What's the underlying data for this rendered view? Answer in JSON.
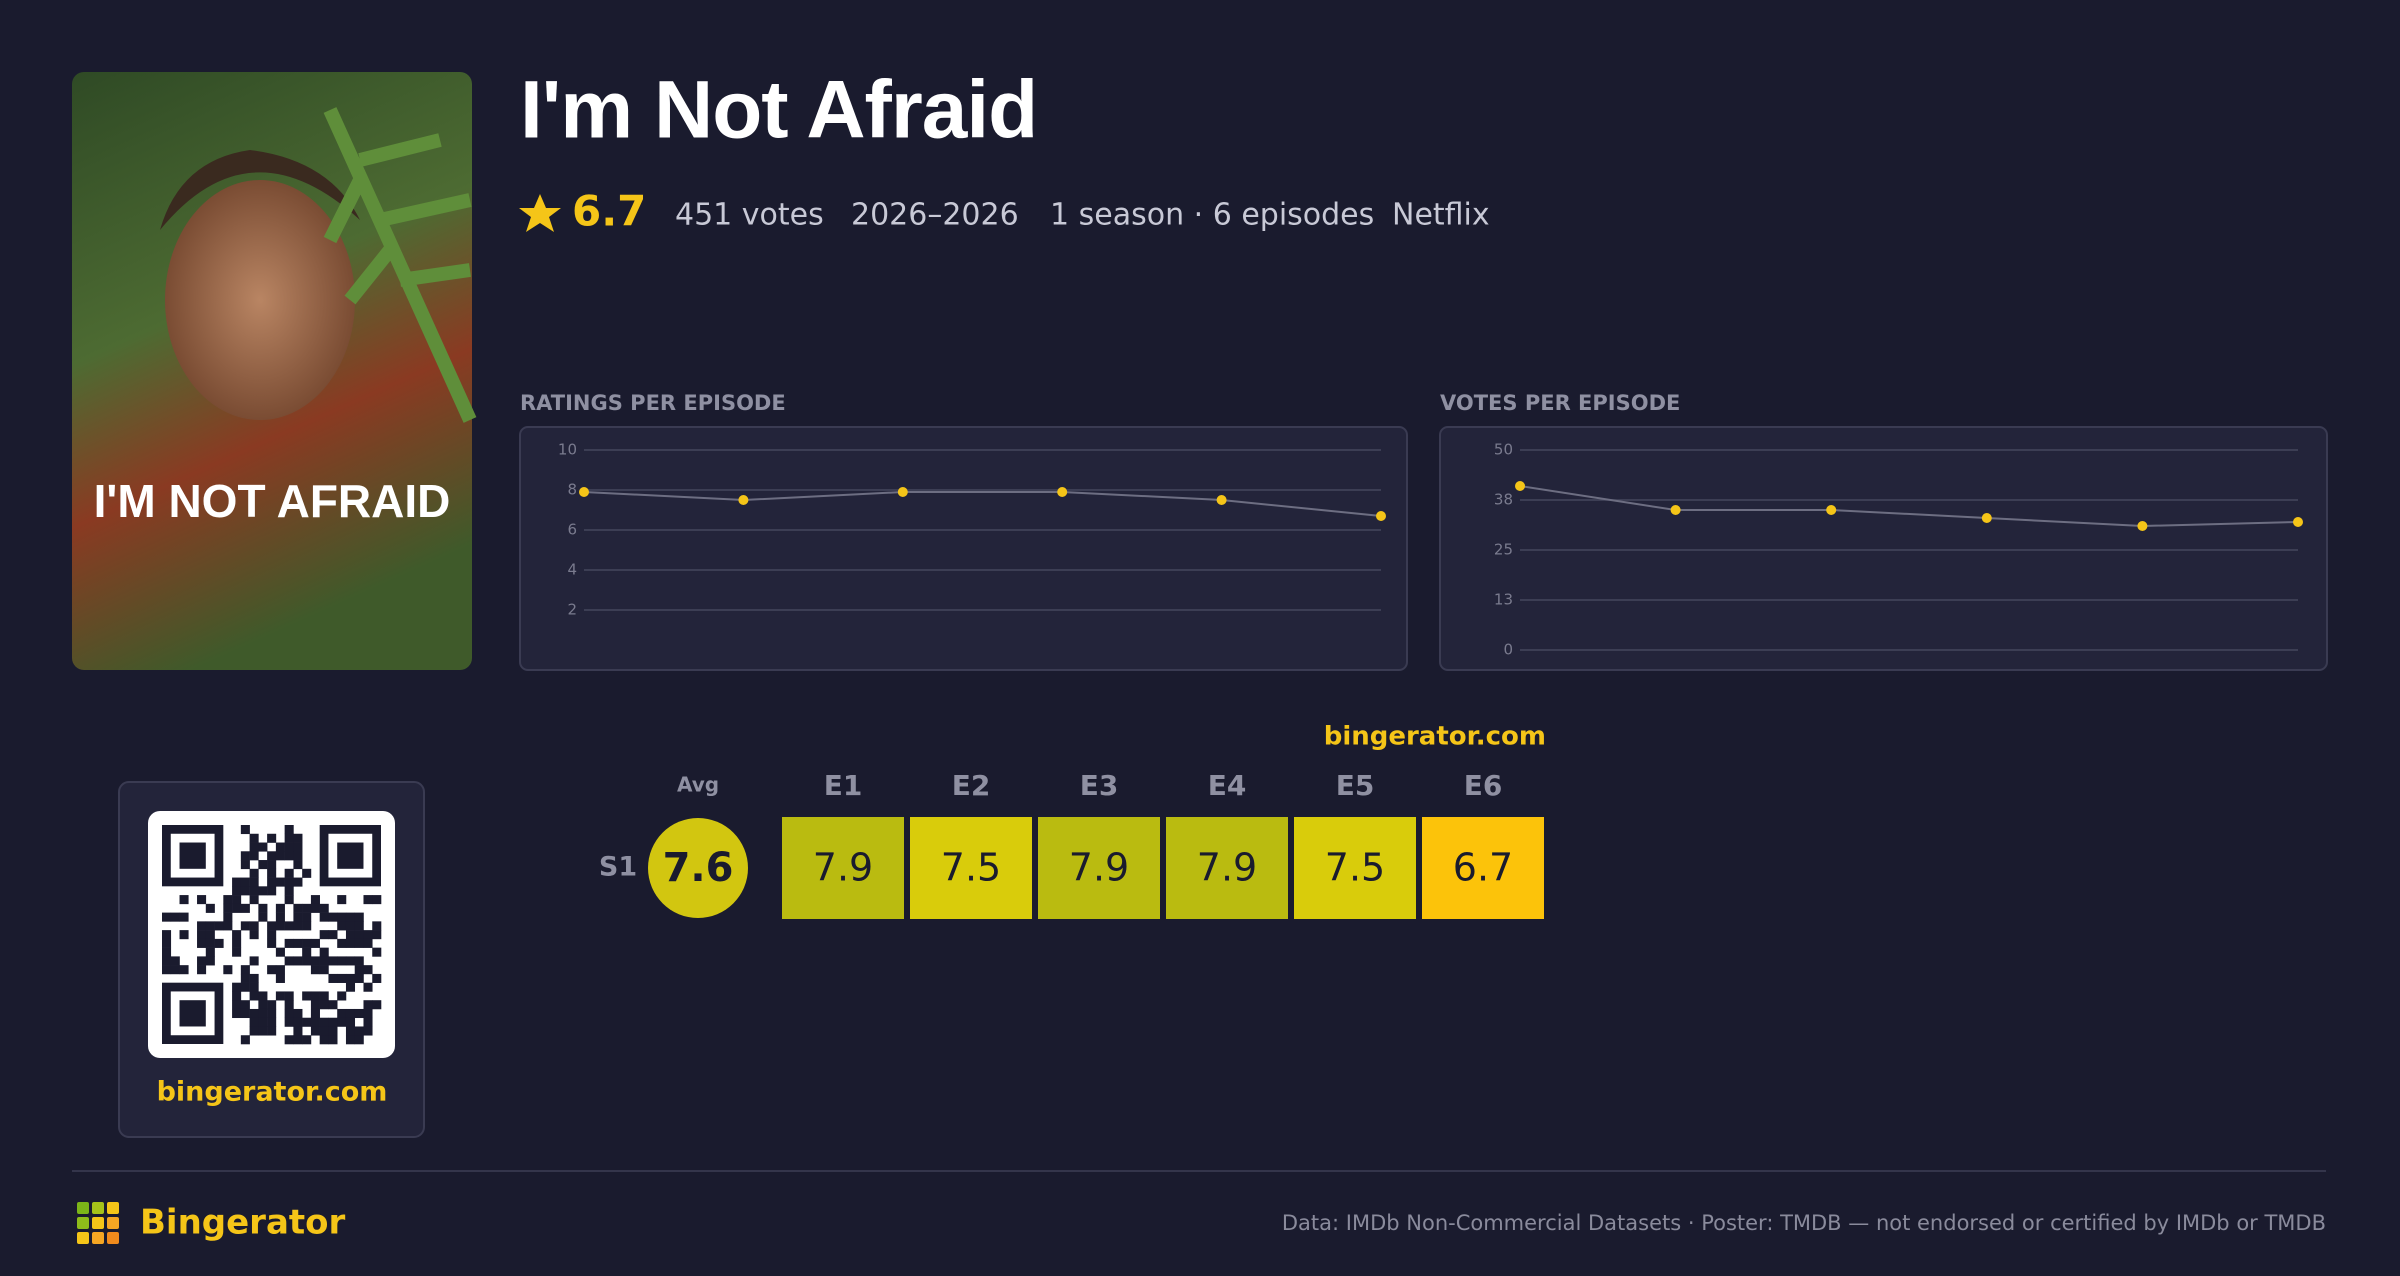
{
  "header": {
    "title": "I'm Not Afraid",
    "rating": 6.7,
    "votes": "451 votes",
    "years": "2026–2026",
    "seasons": "1 season · 6 episodes",
    "network": "Netflix"
  },
  "poster": {
    "text": "I'M NOT AFRAID"
  },
  "chart_data": [
    {
      "type": "line",
      "title": "RATINGS PER EPISODE",
      "values": [
        7.9,
        7.5,
        7.9,
        7.9,
        7.5,
        6.7
      ],
      "color": "#f5c518",
      "line_color": "#6d6e82",
      "ylim": [
        0,
        10
      ],
      "yticks": [
        2,
        4,
        6,
        8,
        10
      ],
      "grid": true
    },
    {
      "type": "line",
      "title": "VOTES PER EPISODE",
      "values": [
        41,
        35,
        35,
        33,
        31,
        32
      ],
      "color": "#f5c518",
      "line_color": "#6d6e82",
      "ylim": [
        0,
        50
      ],
      "yticks": [
        0,
        {
          "value": 12.5,
          "label": "13"
        },
        25,
        {
          "value": 37.5,
          "label": "38"
        },
        50
      ],
      "grid": true
    }
  ],
  "heatmap": {
    "site": "bingerator.com",
    "avg_label": "Avg",
    "episodes": [
      "E1",
      "E2",
      "E3",
      "E4",
      "E5",
      "E6"
    ],
    "rows": [
      {
        "season": "S1",
        "avg": 7.6,
        "avg_color": "#d2c610",
        "values": [
          7.9,
          7.5,
          7.9,
          7.9,
          7.5,
          6.7
        ],
        "colors": [
          "#babb10",
          "#d9cc0b",
          "#babb10",
          "#babb10",
          "#d9cc0b",
          "#fcc30a"
        ]
      }
    ]
  },
  "qr": {
    "site": "bingerator.com"
  },
  "footer": {
    "brand": "Bingerator",
    "credit": "Data: IMDb Non-Commercial Datasets · Poster: TMDB — not endorsed or certified by IMDb or TMDB"
  }
}
